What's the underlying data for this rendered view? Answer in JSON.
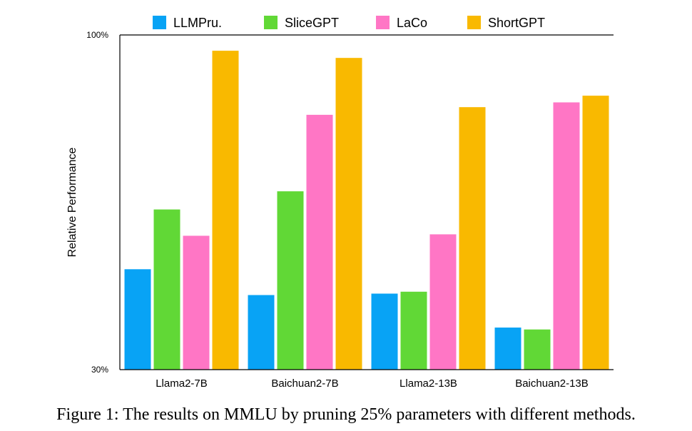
{
  "chart_data": {
    "type": "bar",
    "categories": [
      "Llama2-7B",
      "Baichuan2-7B",
      "Llama2-13B",
      "Baichuan2-13B"
    ],
    "series": [
      {
        "name": "LLMPru.",
        "color": "#08A3F5",
        "values": [
          51.0,
          45.6,
          45.9,
          38.8
        ]
      },
      {
        "name": "SliceGPT",
        "color": "#61D836",
        "values": [
          63.5,
          67.3,
          46.3,
          38.4
        ]
      },
      {
        "name": "LaCo",
        "color": "#FF76C5",
        "values": [
          58.0,
          83.3,
          58.3,
          85.9
        ]
      },
      {
        "name": "ShortGPT",
        "color": "#F9B900",
        "values": [
          96.7,
          95.2,
          84.9,
          87.3
        ]
      }
    ],
    "ylim": [
      30,
      100
    ],
    "yticks": [
      "30%",
      "100%"
    ],
    "ylabel": "Relative Performance",
    "xlabel": "",
    "legend_position": "top",
    "grid": false
  },
  "caption": "Figure 1: The results on MMLU by pruning 25% parameters with different methods."
}
